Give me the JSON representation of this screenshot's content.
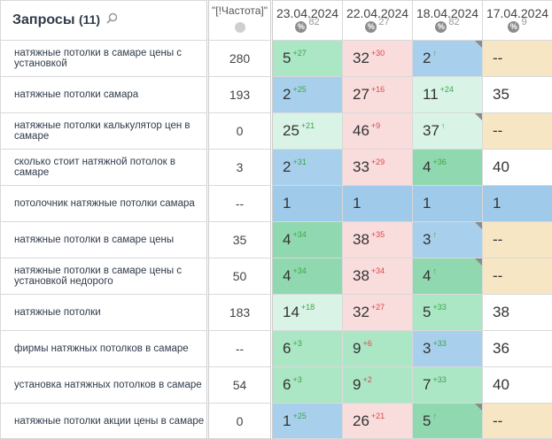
{
  "header": {
    "title": "Запросы",
    "count": "(11)",
    "freq_label": "\"[!Частота]\"",
    "dates": [
      {
        "date": "23.04.2024",
        "sub": "82"
      },
      {
        "date": "22.04.2024",
        "sub": "27"
      },
      {
        "date": "18.04.2024",
        "sub": "82"
      },
      {
        "date": "17.04.2024",
        "sub": "9"
      }
    ],
    "pct_symbol": "%"
  },
  "rows": [
    {
      "query": "натяжные потолки в самаре цены с установкой",
      "freq": "280",
      "cells": [
        {
          "v": "5",
          "d": "+27",
          "dir": "up",
          "c": "green"
        },
        {
          "v": "32",
          "d": "+30",
          "dir": "down",
          "c": "pink"
        },
        {
          "v": "2",
          "d": "↑",
          "dir": "up",
          "c": "blue",
          "tri": true
        },
        {
          "v": "--",
          "d": "",
          "dir": "",
          "c": "tan"
        }
      ]
    },
    {
      "query": "натяжные потолки самара",
      "freq": "193",
      "cells": [
        {
          "v": "2",
          "d": "+25",
          "dir": "up",
          "c": "blue"
        },
        {
          "v": "27",
          "d": "+16",
          "dir": "down",
          "c": "pink"
        },
        {
          "v": "11",
          "d": "+24",
          "dir": "up",
          "c": "green-light"
        },
        {
          "v": "35",
          "d": "",
          "dir": "",
          "c": "white"
        }
      ]
    },
    {
      "query": "натяжные потолки калькулятор цен в самаре",
      "freq": "0",
      "cells": [
        {
          "v": "25",
          "d": "+21",
          "dir": "up",
          "c": "green-light"
        },
        {
          "v": "46",
          "d": "+9",
          "dir": "down",
          "c": "pink"
        },
        {
          "v": "37",
          "d": "↑",
          "dir": "up",
          "c": "green-light",
          "tri": true
        },
        {
          "v": "--",
          "d": "",
          "dir": "",
          "c": "tan"
        }
      ]
    },
    {
      "query": "сколько стоит натяжной потолок в самаре",
      "freq": "3",
      "cells": [
        {
          "v": "2",
          "d": "+31",
          "dir": "up",
          "c": "blue"
        },
        {
          "v": "33",
          "d": "+29",
          "dir": "down",
          "c": "pink"
        },
        {
          "v": "4",
          "d": "+36",
          "dir": "up",
          "c": "green-strong"
        },
        {
          "v": "40",
          "d": "",
          "dir": "",
          "c": "white"
        }
      ]
    },
    {
      "query": "потолочник натяжные потолки самара",
      "freq": "--",
      "cells": [
        {
          "v": "1",
          "d": "",
          "dir": "",
          "c": "blue-strong"
        },
        {
          "v": "1",
          "d": "",
          "dir": "",
          "c": "blue-strong"
        },
        {
          "v": "1",
          "d": "",
          "dir": "",
          "c": "blue-strong"
        },
        {
          "v": "1",
          "d": "",
          "dir": "",
          "c": "blue-strong"
        }
      ]
    },
    {
      "query": "натяжные потолки в самаре цены",
      "freq": "35",
      "cells": [
        {
          "v": "4",
          "d": "+34",
          "dir": "up",
          "c": "green-strong"
        },
        {
          "v": "38",
          "d": "+35",
          "dir": "down",
          "c": "pink"
        },
        {
          "v": "3",
          "d": "↑",
          "dir": "up",
          "c": "blue",
          "tri": true
        },
        {
          "v": "--",
          "d": "",
          "dir": "",
          "c": "tan"
        }
      ]
    },
    {
      "query": "натяжные потолки в самаре цены с установкой недорого",
      "freq": "50",
      "cells": [
        {
          "v": "4",
          "d": "+34",
          "dir": "up",
          "c": "green-strong"
        },
        {
          "v": "38",
          "d": "+34",
          "dir": "down",
          "c": "pink"
        },
        {
          "v": "4",
          "d": "↑",
          "dir": "up",
          "c": "green-strong",
          "tri": true
        },
        {
          "v": "--",
          "d": "",
          "dir": "",
          "c": "tan"
        }
      ]
    },
    {
      "query": "натяжные потолки",
      "freq": "183",
      "cells": [
        {
          "v": "14",
          "d": "+18",
          "dir": "up",
          "c": "green-light"
        },
        {
          "v": "32",
          "d": "+27",
          "dir": "down",
          "c": "pink"
        },
        {
          "v": "5",
          "d": "+33",
          "dir": "up",
          "c": "green"
        },
        {
          "v": "38",
          "d": "",
          "dir": "",
          "c": "white"
        }
      ]
    },
    {
      "query": "фирмы натяжных потолков в самаре",
      "freq": "--",
      "cells": [
        {
          "v": "6",
          "d": "+3",
          "dir": "up",
          "c": "green"
        },
        {
          "v": "9",
          "d": "+6",
          "dir": "down",
          "c": "green"
        },
        {
          "v": "3",
          "d": "+33",
          "dir": "up",
          "c": "blue"
        },
        {
          "v": "36",
          "d": "",
          "dir": "",
          "c": "white"
        }
      ]
    },
    {
      "query": "установка натяжных потолков в самаре",
      "freq": "54",
      "cells": [
        {
          "v": "6",
          "d": "+3",
          "dir": "up",
          "c": "green"
        },
        {
          "v": "9",
          "d": "+2",
          "dir": "down",
          "c": "green"
        },
        {
          "v": "7",
          "d": "+33",
          "dir": "up",
          "c": "green"
        },
        {
          "v": "40",
          "d": "",
          "dir": "",
          "c": "white"
        }
      ]
    },
    {
      "query": "натяжные потолки акции цены в самаре",
      "freq": "0",
      "cells": [
        {
          "v": "1",
          "d": "+25",
          "dir": "up",
          "c": "blue"
        },
        {
          "v": "26",
          "d": "+21",
          "dir": "down",
          "c": "pink"
        },
        {
          "v": "5",
          "d": "↑",
          "dir": "up",
          "c": "green-strong",
          "tri": true
        },
        {
          "v": "--",
          "d": "",
          "dir": "",
          "c": "tan"
        }
      ]
    }
  ]
}
